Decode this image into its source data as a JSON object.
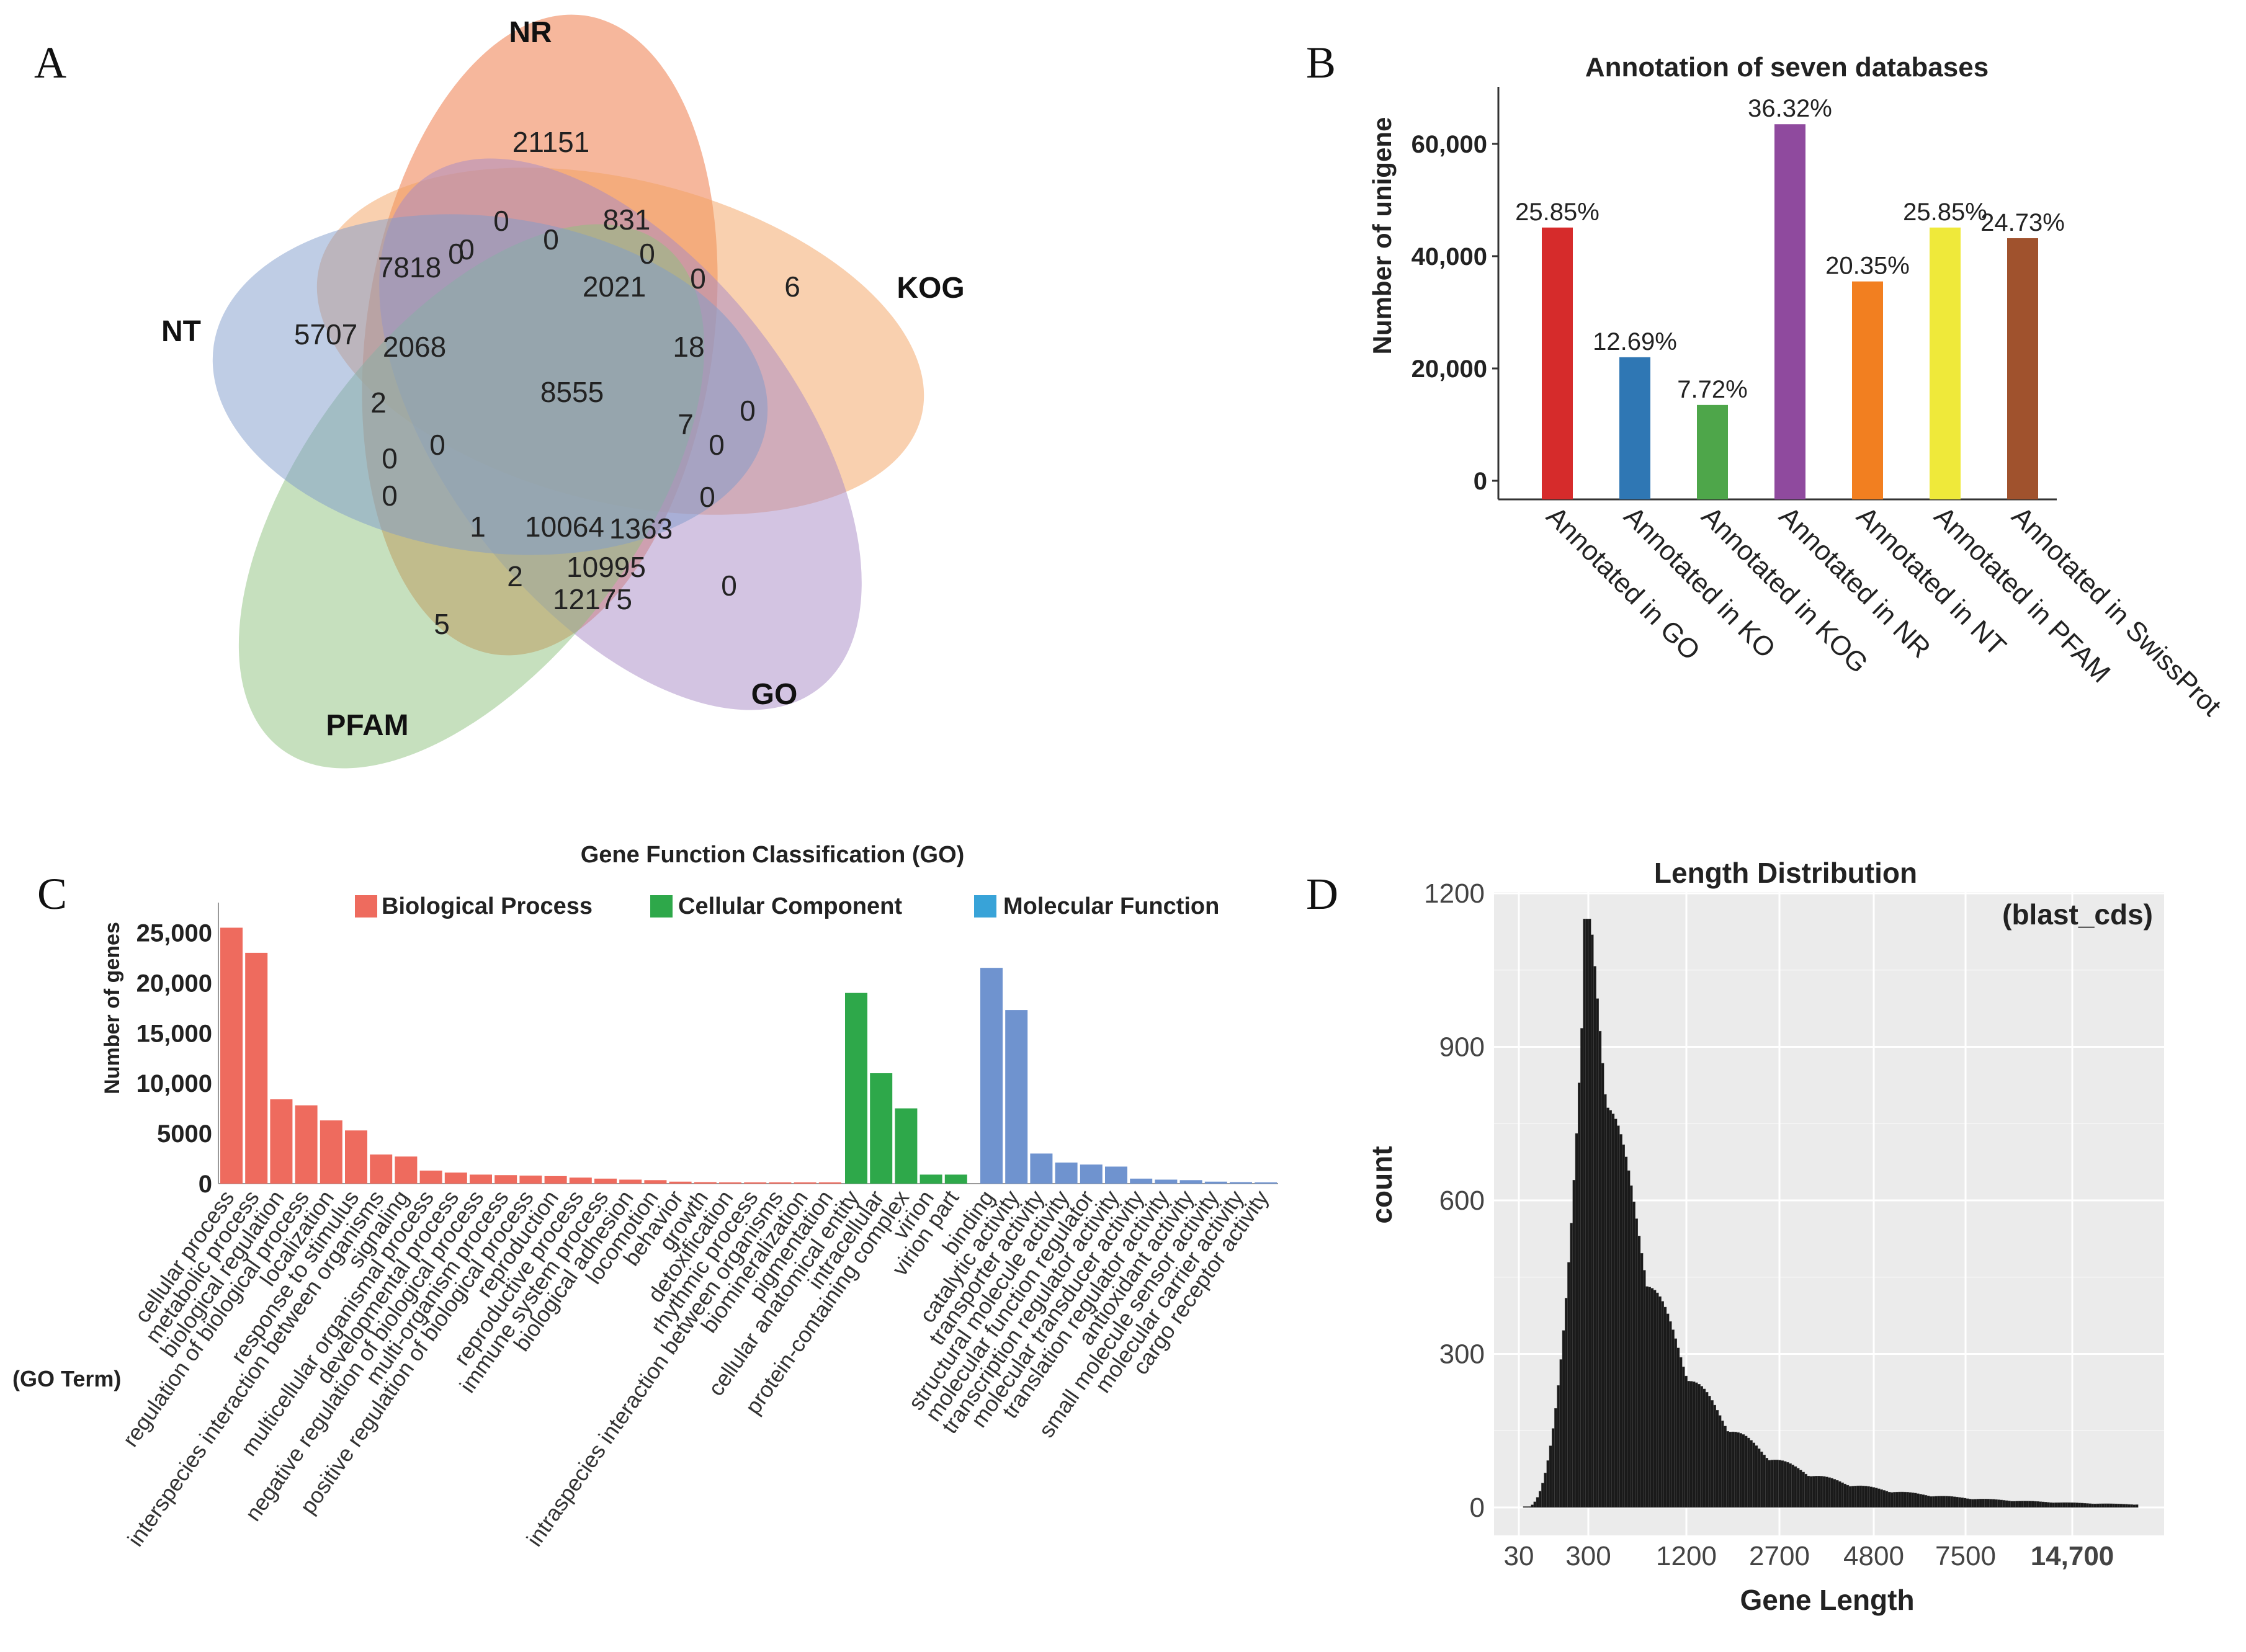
{
  "panels": {
    "a": "A",
    "b": "B",
    "c": "C",
    "d": "D"
  },
  "venn": {
    "sets": [
      {
        "name": "NR",
        "color": "#ee7b4a"
      },
      {
        "name": "KOG",
        "color": "#f4a260"
      },
      {
        "name": "GO",
        "color": "#a88ac6"
      },
      {
        "name": "PFAM",
        "color": "#8dc27e"
      },
      {
        "name": "NT",
        "color": "#7f9bcc"
      }
    ],
    "counts": [
      "21151",
      "0",
      "831",
      "0",
      "7818",
      "0",
      "0",
      "2021",
      "0",
      "6",
      "5707",
      "2068",
      "8555",
      "18",
      "2",
      "7",
      "0",
      "0",
      "0",
      "0",
      "0",
      "1",
      "10064",
      "1363",
      "2",
      "10995",
      "12175",
      "0",
      "5"
    ]
  },
  "chart_data": [
    {
      "type": "bar",
      "title": "Annotation of seven  databases",
      "xlabel": "",
      "ylabel": "Number of unigene",
      "ylim": [
        0,
        72000
      ],
      "yticks": [
        "0",
        "20,000",
        "40,000",
        "60,000"
      ],
      "categories": [
        "Annotated in GO",
        "Annotated in KO",
        "Annotated in KOG",
        "Annotated in NR",
        "Annotated in NT",
        "Annotated in PFAM",
        "Annotated in SwissProt"
      ],
      "values": [
        45100,
        22000,
        13500,
        63500,
        35500,
        45100,
        43200
      ],
      "labels": [
        "25.85%",
        "12.69%",
        "7.72%",
        "36.32%",
        "20.35%",
        "25.85%",
        "24.73%"
      ],
      "colors": [
        "#d62b2b",
        "#2f77b4",
        "#4ea64a",
        "#8f4a9e",
        "#f27f20",
        "#efe93a",
        "#a0522d"
      ]
    },
    {
      "type": "bar",
      "title": "Gene Function Classification (GO)",
      "xlabel": "(GO Term)",
      "ylabel": "Number of genes",
      "ylim": [
        0,
        28000
      ],
      "yticks": [
        "0",
        "5000",
        "10,000",
        "15,000",
        "20,000",
        "25,000"
      ],
      "legend": [
        {
          "name": "Biological Process",
          "color": "#ee6b5e"
        },
        {
          "name": "Cellular Component",
          "color": "#2ea84a"
        },
        {
          "name": "Molecular Function",
          "color": "#6f93cf"
        }
      ],
      "groups": [
        {
          "name": "Biological Process",
          "categories": [
            "cellular process",
            "metabolic process",
            "biological regulation",
            "regulation of biological process",
            "localization",
            "response to stimulus",
            "interspecies interaction between organisms",
            "signaling",
            "multicellular organismal process",
            "developmental process",
            "negative regulation of biological process",
            "multi-organism process",
            "positive regulation of biological process",
            "reproduction",
            "reproductive process",
            "immune system process",
            "biological adhesion",
            "locomotion",
            "behavior",
            "growth",
            "detoxification",
            "rhythmic process",
            "intraspecies interaction between organisms",
            "biomineralization",
            "pigmentation"
          ],
          "values": [
            25500,
            23000,
            8400,
            7800,
            6300,
            5300,
            2900,
            2700,
            1300,
            1100,
            900,
            850,
            800,
            750,
            600,
            500,
            400,
            350,
            200,
            150,
            120,
            100,
            80,
            60,
            40
          ]
        },
        {
          "name": "Cellular Component",
          "categories": [
            "cellular anatomical entity",
            "intracellular",
            "protein-containing complex",
            "virion",
            "virion part"
          ],
          "values": [
            19000,
            11000,
            7500,
            900,
            900
          ]
        },
        {
          "name": "Molecular Function",
          "categories": [
            "binding",
            "catalytic activity",
            "transporter activity",
            "structural molecule activity",
            "molecular function regulator",
            "transcription regulator activity",
            "molecular transducer activity",
            "translation regulator activity",
            "antioxidant activity",
            "small molecule sensor activity",
            "molecular carrier activity",
            "cargo receptor activity"
          ],
          "values": [
            21500,
            17300,
            3000,
            2100,
            1900,
            1700,
            500,
            400,
            350,
            200,
            150,
            100
          ]
        }
      ]
    },
    {
      "type": "bar",
      "title": "Length Distribution",
      "subtitle": "(blast_cds)",
      "xlabel": "Gene Length",
      "ylabel": "count",
      "ylim": [
        0,
        1200
      ],
      "yticks": [
        "0",
        "300",
        "600",
        "900",
        "1200"
      ],
      "xticks": [
        "30",
        "300",
        "1200",
        "2700",
        "4800",
        "7500",
        "14,700"
      ],
      "peak_length": 300,
      "peak_count": 1150
    }
  ]
}
